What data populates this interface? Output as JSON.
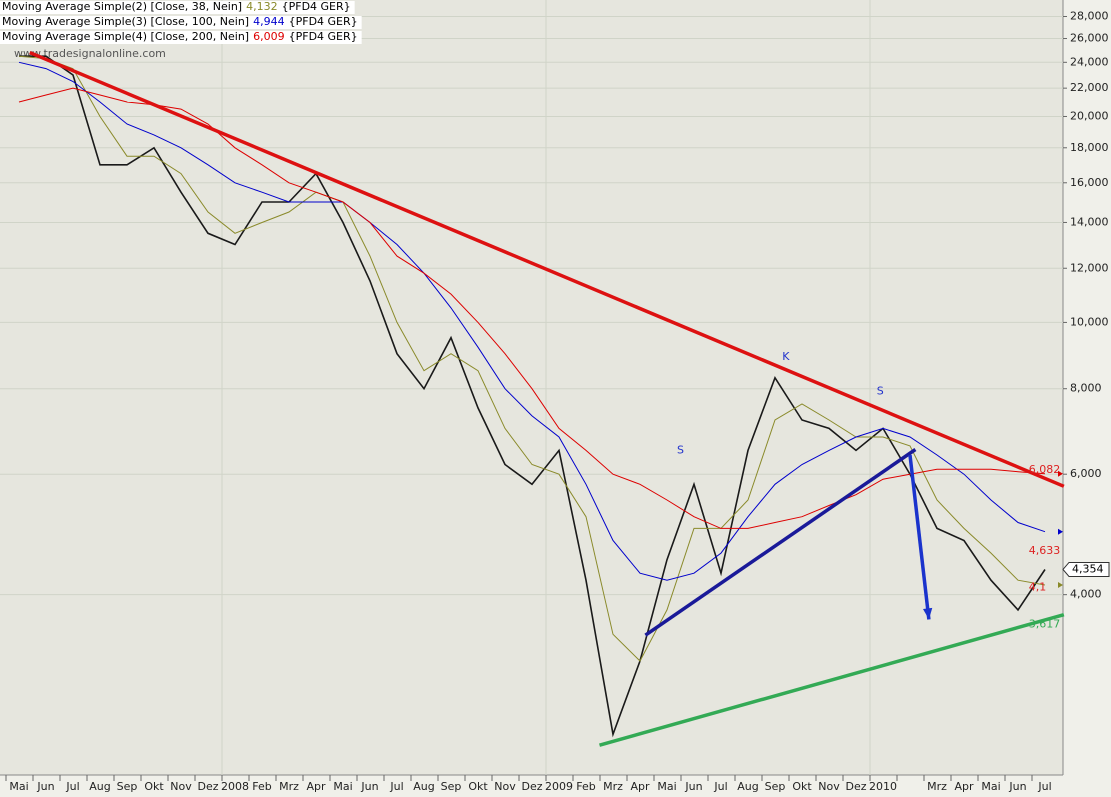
{
  "chart_data": {
    "type": "line",
    "watermark": "www.tradesignalonline.com",
    "categories": [
      "Mai",
      "Jun",
      "Jul",
      "Aug",
      "Sep",
      "Okt",
      "Nov",
      "Dez",
      "2008",
      "Feb",
      "Mrz",
      "Apr",
      "Mai",
      "Jun",
      "Jul",
      "Aug",
      "Sep",
      "Okt",
      "Nov",
      "Dez",
      "2009",
      "Feb",
      "Mrz",
      "Apr",
      "Mai",
      "Jun",
      "Jul",
      "Aug",
      "Sep",
      "Okt",
      "Nov",
      "Dez",
      "2010",
      null,
      "Mrz",
      "Apr",
      "Mai",
      "Jun",
      "Jul"
    ],
    "log_scale": true,
    "ylim": [
      2.18,
      29.6
    ],
    "yticks": [
      {
        "value": 4,
        "label": "4,000"
      },
      {
        "value": 6,
        "label": "6,000"
      },
      {
        "value": 8,
        "label": "8,000"
      },
      {
        "value": 10,
        "label": "10,000"
      },
      {
        "value": 12,
        "label": "12,000"
      },
      {
        "value": 14,
        "label": "14,000"
      },
      {
        "value": 16,
        "label": "16,000"
      },
      {
        "value": 18,
        "label": "18,000"
      },
      {
        "value": 20,
        "label": "20,000"
      },
      {
        "value": 22,
        "label": "22,000"
      },
      {
        "value": 24,
        "label": "24,000"
      },
      {
        "value": 26,
        "label": "26,000"
      },
      {
        "value": 28,
        "label": "28,000"
      }
    ],
    "grid": true,
    "last_price": {
      "value": 4.354,
      "label": "4,354"
    },
    "series": [
      {
        "color": "#1a1a1a",
        "values": [
          24.5,
          24.5,
          23,
          17,
          17,
          18,
          15.5,
          13.5,
          13,
          15,
          15,
          16.5,
          14,
          11.5,
          9,
          8,
          9.5,
          7.5,
          6.2,
          5.8,
          6.5,
          4.2,
          2.5,
          3.2,
          4.5,
          5.8,
          4.3,
          6.5,
          8.3,
          7.2,
          7.0,
          6.5,
          7.0,
          6.0,
          5.0,
          4.8,
          4.2,
          3.8,
          4.354
        ]
      },
      {
        "name": "Moving Average Simple(2) [Close, 38, Nein]",
        "color": "#8a8a2a",
        "legend_value": {
          "value": 4.132,
          "label": "4,132"
        },
        "suffix": "{PFD4 GER}",
        "values": [
          24.5,
          24.3,
          23.5,
          20,
          17.5,
          17.5,
          16.5,
          14.5,
          13.5,
          14,
          14.5,
          15.5,
          15,
          12.5,
          10,
          8.5,
          9,
          8.5,
          7,
          6.2,
          6.0,
          5.2,
          3.5,
          3.2,
          3.8,
          5.0,
          5.0,
          5.5,
          7.2,
          7.6,
          7.2,
          6.8,
          6.8,
          6.6,
          5.5,
          5.0,
          4.6,
          4.2,
          4.132
        ]
      },
      {
        "name": "Moving Average Simple(3) [Close, 100, Nein]",
        "color": "#0000cc",
        "legend_value": {
          "value": 4.944,
          "label": "4,944"
        },
        "suffix": "{PFD4 GER}",
        "values": [
          24,
          23.5,
          22.5,
          21,
          19.5,
          18.8,
          18,
          17,
          16,
          15.5,
          15,
          15,
          15,
          14,
          13,
          11.8,
          10.5,
          9.2,
          8,
          7.3,
          6.8,
          5.8,
          4.8,
          4.3,
          4.2,
          4.3,
          4.6,
          5.2,
          5.8,
          6.2,
          6.5,
          6.8,
          7.0,
          6.8,
          6.4,
          6.0,
          5.5,
          5.1,
          4.944
        ]
      },
      {
        "name": "Moving Average Simple(4) [Close, 200, Nein]",
        "color": "#dd0000",
        "legend_value": {
          "value": 6.009,
          "label": "6,009"
        },
        "suffix": "{PFD4 GER}",
        "values": [
          21,
          21.5,
          22,
          21.5,
          21,
          20.8,
          20.5,
          19.5,
          18,
          17,
          16,
          15.5,
          15,
          14,
          12.5,
          11.8,
          11,
          10,
          9,
          8,
          7,
          6.5,
          6.0,
          5.8,
          5.5,
          5.2,
          5.0,
          5.0,
          5.1,
          5.2,
          5.4,
          5.6,
          5.9,
          6.0,
          6.1,
          6.1,
          6.1,
          6.05,
          6.009
        ]
      }
    ],
    "trendlines": [
      {
        "color": "#dd1111",
        "x": [
          0.4,
          38.7
        ],
        "y": [
          24.8,
          5.76
        ]
      },
      {
        "color": "#33aa55",
        "x": [
          21.5,
          38.7
        ],
        "y": [
          2.41,
          3.74
        ]
      },
      {
        "color": "#1a1a99",
        "x": [
          23.2,
          33.2
        ],
        "y": [
          3.49,
          6.52
        ]
      },
      {
        "color": "#1a33cc",
        "x": [
          33.0,
          33.7
        ],
        "y": [
          6.4,
          3.68
        ],
        "arrow": true
      }
    ],
    "annotations": [
      {
        "text": "S",
        "x": 24.5,
        "y": 6.5
      },
      {
        "text": "K",
        "x": 28.4,
        "y": 8.9
      },
      {
        "text": "S",
        "x": 31.9,
        "y": 7.93
      }
    ],
    "level_labels": [
      {
        "value": 6.082,
        "label": "6,082",
        "x": 37.4,
        "color": "#dd2222"
      },
      {
        "value": 4.633,
        "label": "4,633",
        "x": 37.4,
        "color": "#dd2222"
      },
      {
        "value": 4.1,
        "label": "4,1",
        "x": 37.4,
        "color": "#dd2222"
      },
      {
        "value": 3.617,
        "label": "3,617",
        "x": 37.4,
        "color": "#33aa55"
      }
    ]
  }
}
